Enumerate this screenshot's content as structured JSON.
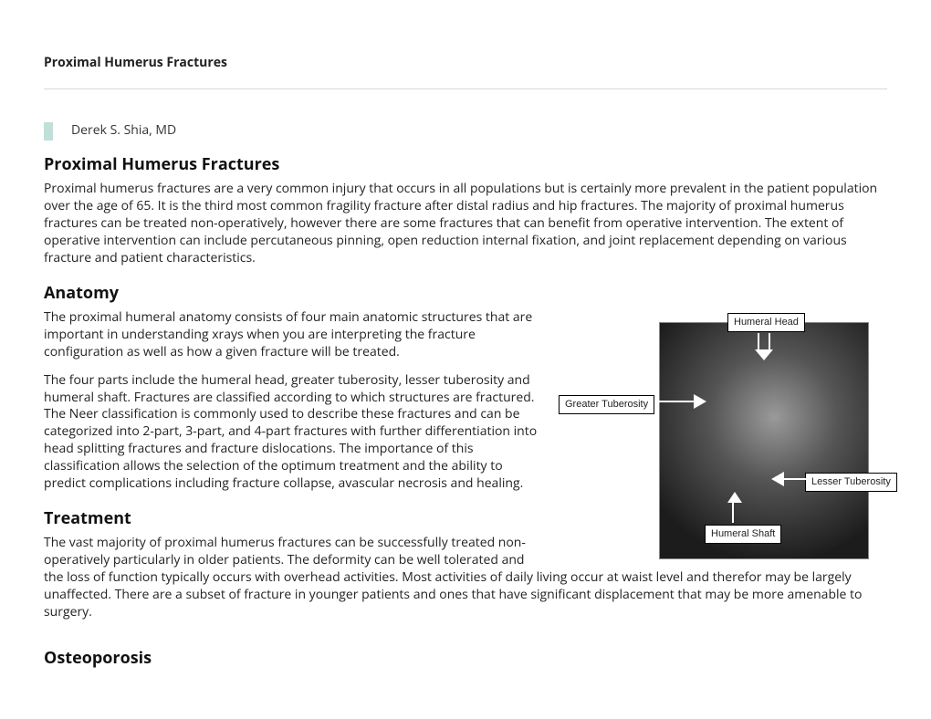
{
  "header": {
    "title": "Proximal Humerus Fractures"
  },
  "author": {
    "name": "Derek S. Shia, MD"
  },
  "sections": {
    "intro": {
      "title": "Proximal Humerus Fractures",
      "body": "Proximal humerus fractures are a very common injury that occurs in all populations but is certainly more prevalent in the patient population over the age of 65. It is the third most common fragility fracture after distal radius and hip fractures. The majority of proximal humerus fractures can be treated non-operatively, however there are some fractures that can benefit from operative intervention. The extent of operative intervention can include percutaneous pinning, open reduction internal fixation, and joint replacement depending on various fracture and patient characteristics."
    },
    "anatomy": {
      "title": "Anatomy",
      "body1": "The proximal humeral anatomy consists of four main anatomic structures that are important in understanding xrays when you are interpreting the fracture configuration as well as how a given fracture will be treated.",
      "body2": "The four parts include the humeral head, greater tuberosity, lesser tuberosity and humeral shaft.  Fractures are classified according to which structures are fractured.  The Neer classification is commonly used to describe these fractures and can be categorized into 2-part, 3-part, and 4-part fractures with further differentiation into head splitting fractures and fracture dislocations. The importance of this classification allows the selection of the optimum treatment and the ability to predict complications including fracture collapse, avascular necrosis and healing."
    },
    "treatment": {
      "title": "Treatment",
      "body": "The vast majority of proximal humerus fractures can be successfully treated non-operatively particularly in older patients. The deformity can be well tolerated and the loss of function typically occurs with overhead activities. Most activities of daily living occur at waist level and therefor may be largely unaffected. There are a subset of fracture in younger patients and ones that have significant displacement that may be more amenable to surgery."
    },
    "osteoporosis": {
      "title": "Osteoporosis"
    }
  },
  "figure": {
    "type": "annotated-xray",
    "background_color": "#ffffff",
    "image_gradient": [
      "#9a9a9a",
      "#555555",
      "#1c1c1c"
    ],
    "label_bg": "#ffffff",
    "label_border": "#000000",
    "label_fontsize": 11,
    "arrow_color": "#ffffff",
    "labels": {
      "humeral_head": "Humeral Head",
      "greater_tub": "Greater Tuberosity",
      "lesser_tub": "Lesser Tuberosity",
      "humeral_shaft": "Humeral Shaft"
    }
  },
  "colors": {
    "text": "#222222",
    "heading": "#111111",
    "divider": "#d8d8d8",
    "author_icon": "#bfe0d8"
  },
  "typography": {
    "body_fontsize": 14,
    "heading_fontsize": 18,
    "header_fontsize": 14
  }
}
